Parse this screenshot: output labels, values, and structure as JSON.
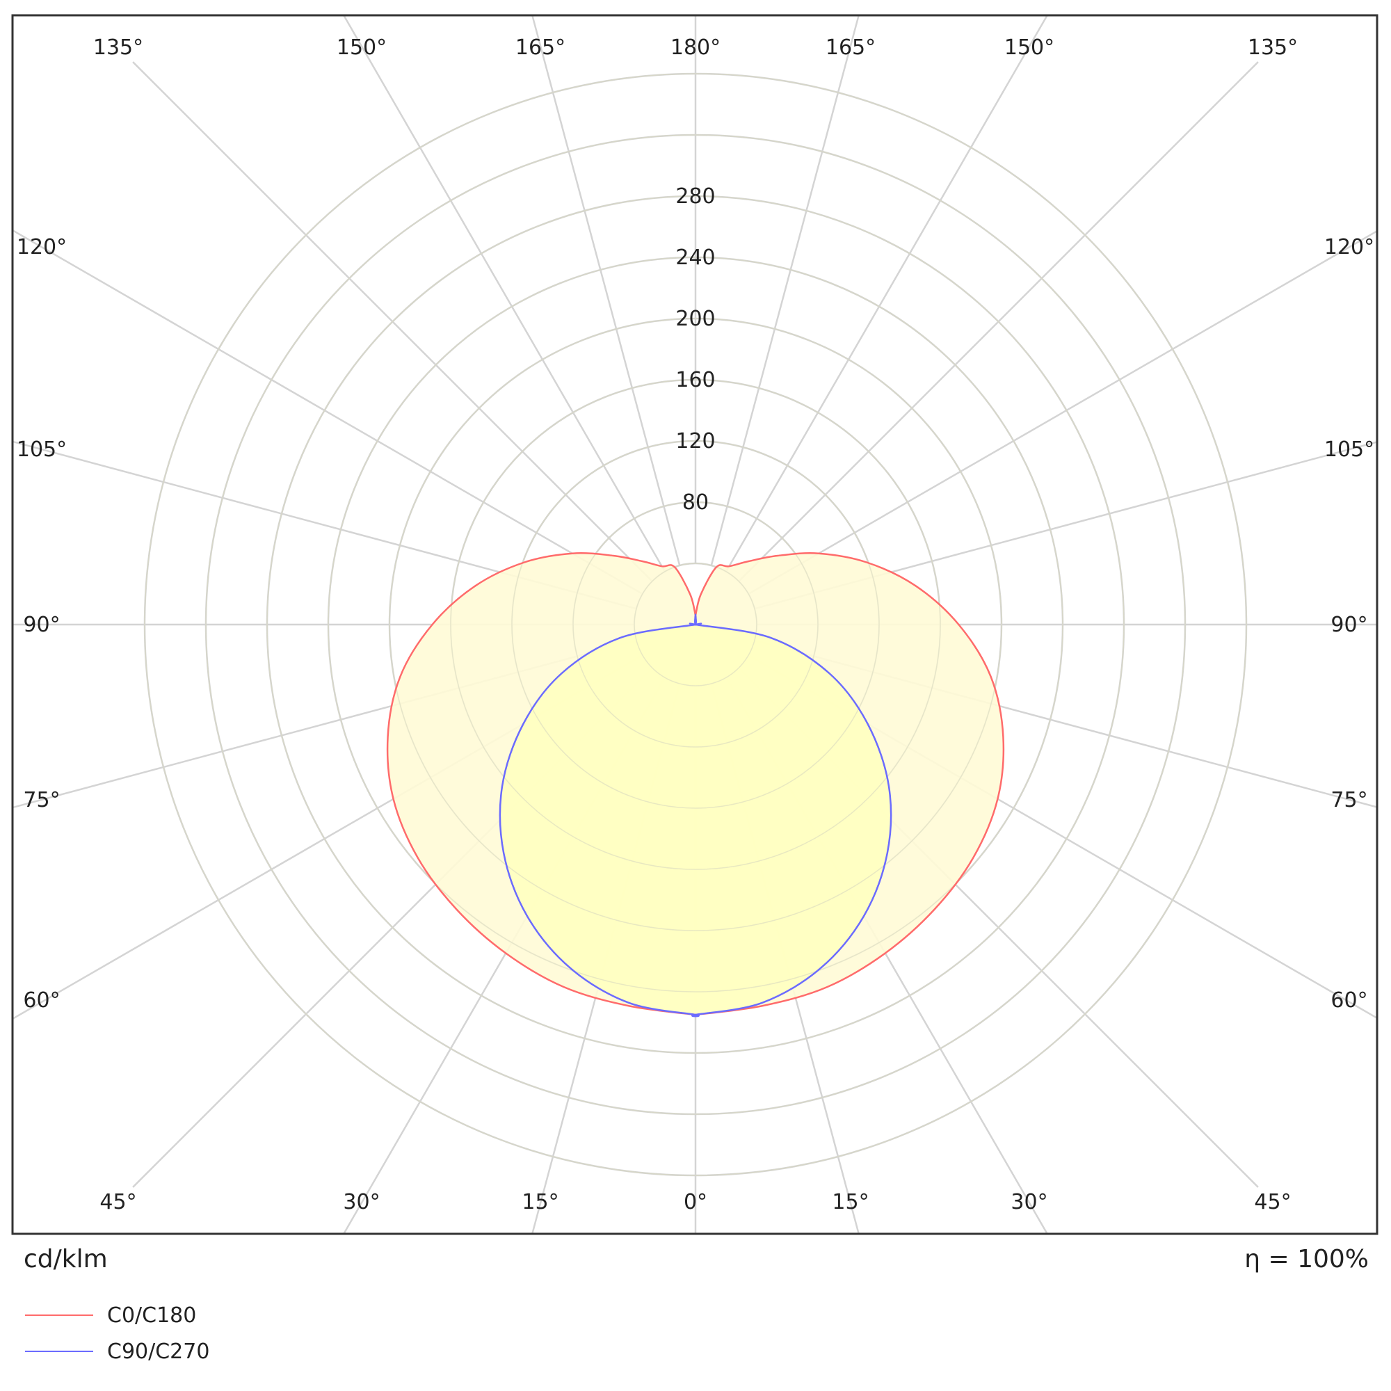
{
  "chart_data": {
    "type": "polar",
    "unit": "cd/klm",
    "efficiency": "η = 100%",
    "radial_ticks": [
      80,
      120,
      160,
      200,
      240,
      280
    ],
    "radial_labels": [
      "80",
      "120",
      "160",
      "200",
      "240",
      "280"
    ],
    "radial_grid": [
      40,
      80,
      120,
      160,
      200,
      240,
      280,
      320,
      360
    ],
    "angle_ticks": [
      0,
      15,
      30,
      45,
      60,
      75,
      90,
      105,
      120,
      135,
      150,
      165,
      180
    ],
    "angle_labels_left": [
      {
        "angle": 0,
        "label": "0°"
      },
      {
        "angle": 15,
        "label": "15°"
      },
      {
        "angle": 30,
        "label": "30°"
      },
      {
        "angle": 45,
        "label": "45°"
      },
      {
        "angle": 60,
        "label": "60°"
      },
      {
        "angle": 75,
        "label": "75°"
      },
      {
        "angle": 90,
        "label": "90°"
      },
      {
        "angle": 105,
        "label": "105°"
      },
      {
        "angle": 120,
        "label": "120°"
      },
      {
        "angle": 135,
        "label": "135°"
      },
      {
        "angle": 150,
        "label": "150°"
      },
      {
        "angle": 165,
        "label": "165°"
      },
      {
        "angle": 180,
        "label": "180°"
      }
    ],
    "angle_labels_right": [
      {
        "angle": 15,
        "label": "15°"
      },
      {
        "angle": 30,
        "label": "30°"
      },
      {
        "angle": 45,
        "label": "45°"
      },
      {
        "angle": 60,
        "label": "60°"
      },
      {
        "angle": 75,
        "label": "75°"
      },
      {
        "angle": 90,
        "label": "90°"
      },
      {
        "angle": 105,
        "label": "105°"
      },
      {
        "angle": 120,
        "label": "120°"
      },
      {
        "angle": 135,
        "label": "135°"
      },
      {
        "angle": 150,
        "label": "150°"
      },
      {
        "angle": 165,
        "label": "165°"
      }
    ],
    "series": [
      {
        "name": "C0/C180",
        "color": "#ff6b6b",
        "fill": "#fffbd6",
        "angles": [
          0,
          10,
          20,
          30,
          40,
          50,
          60,
          70,
          80,
          90,
          100,
          110,
          120,
          130,
          140,
          150,
          160,
          170,
          180
        ],
        "values": [
          255,
          253,
          252,
          248,
          243,
          237,
          228,
          214,
          196,
          172,
          146,
          119,
          93,
          70,
          54,
          44,
          40,
          20,
          6
        ]
      },
      {
        "name": "C90/C270",
        "color": "#6b6bff",
        "fill": "#ffffc0",
        "angles": [
          0,
          10,
          20,
          30,
          40,
          50,
          60,
          70,
          80,
          90,
          100,
          110,
          120,
          130,
          140,
          150,
          160,
          170,
          180
        ],
        "values": [
          255,
          251,
          239,
          220,
          195,
          165,
          130,
          93,
          50,
          0,
          0,
          0,
          0,
          0,
          0,
          0,
          0,
          2,
          6
        ]
      }
    ]
  },
  "labels": {
    "unit": "cd/klm",
    "efficiency": "η = 100%",
    "legend": [
      "C0/C180",
      "C90/C270"
    ]
  }
}
